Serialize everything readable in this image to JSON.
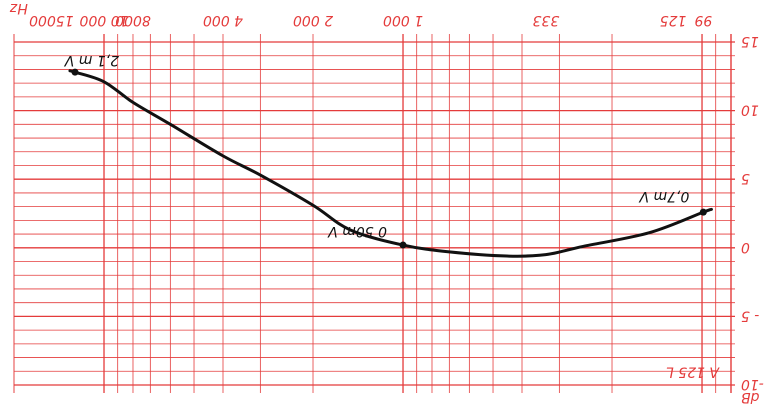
{
  "chart_data": {
    "type": "line",
    "x_scale": "log",
    "x_label": "Hz",
    "y_label": "dB",
    "grid": true,
    "colors": {
      "grid": "#e43b3b",
      "curve": "#111111"
    },
    "orientation": "rotated 180 degrees",
    "x_ticks": [
      {
        "value": 99,
        "label": "99"
      },
      {
        "value": 125,
        "label": "125"
      },
      {
        "value": 333,
        "label": "333"
      },
      {
        "value": 1000,
        "label": "1 000"
      },
      {
        "value": 2000,
        "label": "2 000"
      },
      {
        "value": 4000,
        "label": "4 000"
      },
      {
        "value": 8000,
        "label": "8000"
      },
      {
        "value": 10000,
        "label": "10 000"
      },
      {
        "value": 15000,
        "label": "15000"
      }
    ],
    "y_ticks": [
      {
        "value": -10,
        "label": "-10"
      },
      {
        "value": -5,
        "label": "- 5"
      },
      {
        "value": 0,
        "label": "0"
      },
      {
        "value": 5,
        "label": "5"
      },
      {
        "value": 10,
        "label": "10"
      },
      {
        "value": 15,
        "label": "15"
      }
    ],
    "xlim": [
      80,
      20000
    ],
    "ylim": [
      -10,
      15
    ],
    "series": [
      {
        "points": [
          {
            "x": 93,
            "y": 2.8
          },
          {
            "x": 99,
            "y": 2.6
          },
          {
            "x": 150,
            "y": 1.1
          },
          {
            "x": 250,
            "y": 0.1
          },
          {
            "x": 333,
            "y": -0.5
          },
          {
            "x": 450,
            "y": -0.6
          },
          {
            "x": 700,
            "y": -0.3
          },
          {
            "x": 1000,
            "y": 0.2
          },
          {
            "x": 1500,
            "y": 1.3
          },
          {
            "x": 2000,
            "y": 3.1
          },
          {
            "x": 3000,
            "y": 5.3
          },
          {
            "x": 4000,
            "y": 6.7
          },
          {
            "x": 6000,
            "y": 9.0
          },
          {
            "x": 8000,
            "y": 10.6
          },
          {
            "x": 10000,
            "y": 12.1
          },
          {
            "x": 12500,
            "y": 12.8
          },
          {
            "x": 13000,
            "y": 12.9
          }
        ]
      }
    ],
    "markers": [
      {
        "x": 99,
        "y": 2.6,
        "label": "0,7m V"
      },
      {
        "x": 1000,
        "y": 0.2,
        "label": "0 50m V"
      },
      {
        "x": 12500,
        "y": 12.8,
        "label": "2,1 m V"
      }
    ],
    "corner_label": "A 125 L"
  }
}
